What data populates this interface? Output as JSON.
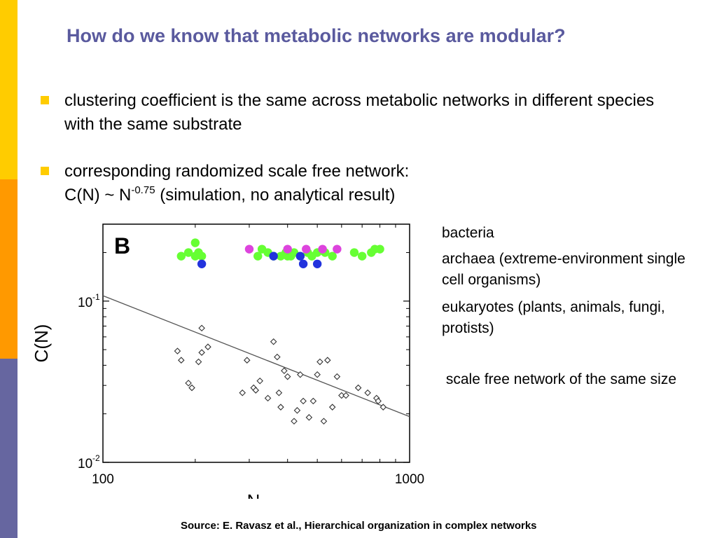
{
  "slide": {
    "title": "How do we know that metabolic networks are modular?",
    "bullets": [
      {
        "text": "clustering coefficient is the same across metabolic networks in different species with the same substrate"
      },
      {
        "line1": "corresponding randomized scale free network:",
        "line2_prefix": "C(N) ~ N",
        "line2_exponent": "-0.75",
        "line2_suffix": " (simulation, no analytical result)"
      }
    ],
    "legend": [
      "bacteria",
      "archaea (extreme-environment single cell organisms)",
      "eukaryotes (plants, animals, fungi, protists)",
      " scale free network of the same size"
    ],
    "source": "Source: E. Ravasz et al., Hierarchical organization in complex networks"
  },
  "colors": {
    "accent_yellow": "#FFCC00",
    "accent_orange": "#FF9900",
    "accent_purple": "#6666A0",
    "title": "#5A5A9E",
    "bacteria": "#66FF33",
    "archaea": "#DD44DD",
    "eukaryotes": "#2233DD"
  },
  "chart_data": {
    "type": "scatter",
    "panel_label": "B",
    "xlabel": "N",
    "ylabel": "C(N)",
    "xscale": "log",
    "yscale": "log",
    "xlim": [
      100,
      1000
    ],
    "ylim": [
      0.01,
      0.3
    ],
    "xticks": [
      {
        "value": 100,
        "label": "100"
      },
      {
        "value": 1000,
        "label": "1000"
      }
    ],
    "yticks": [
      {
        "value": 0.01,
        "base": "10",
        "exp": "-2"
      },
      {
        "value": 0.1,
        "base": "10",
        "exp": "-1"
      }
    ],
    "series": [
      {
        "color": "#66FF33",
        "marker": "filled-circle",
        "points": [
          [
            180,
            0.19
          ],
          [
            190,
            0.2
          ],
          [
            200,
            0.23
          ],
          [
            200,
            0.19
          ],
          [
            205,
            0.2
          ],
          [
            210,
            0.19
          ],
          [
            320,
            0.19
          ],
          [
            330,
            0.21
          ],
          [
            345,
            0.2
          ],
          [
            360,
            0.19
          ],
          [
            380,
            0.19
          ],
          [
            395,
            0.2
          ],
          [
            400,
            0.19
          ],
          [
            410,
            0.19
          ],
          [
            420,
            0.2
          ],
          [
            440,
            0.19
          ],
          [
            465,
            0.2
          ],
          [
            480,
            0.19
          ],
          [
            500,
            0.2
          ],
          [
            530,
            0.2
          ],
          [
            560,
            0.19
          ],
          [
            660,
            0.2
          ],
          [
            700,
            0.19
          ],
          [
            750,
            0.2
          ],
          [
            770,
            0.21
          ],
          [
            800,
            0.21
          ]
        ]
      },
      {
        "color": "#DD44DD",
        "marker": "filled-circle",
        "points": [
          [
            300,
            0.21
          ],
          [
            400,
            0.21
          ],
          [
            460,
            0.21
          ],
          [
            520,
            0.21
          ],
          [
            580,
            0.21
          ]
        ]
      },
      {
        "color": "#2233DD",
        "marker": "filled-circle",
        "points": [
          [
            210,
            0.17
          ],
          [
            360,
            0.19
          ],
          [
            440,
            0.19
          ],
          [
            450,
            0.17
          ],
          [
            500,
            0.17
          ]
        ]
      },
      {
        "color": "#000000",
        "marker": "open-diamond",
        "points": [
          [
            175,
            0.049
          ],
          [
            180,
            0.043
          ],
          [
            190,
            0.031
          ],
          [
            195,
            0.029
          ],
          [
            205,
            0.042
          ],
          [
            210,
            0.048
          ],
          [
            210,
            0.068
          ],
          [
            220,
            0.052
          ],
          [
            285,
            0.027
          ],
          [
            295,
            0.043
          ],
          [
            310,
            0.029
          ],
          [
            315,
            0.028
          ],
          [
            325,
            0.032
          ],
          [
            345,
            0.025
          ],
          [
            360,
            0.056
          ],
          [
            370,
            0.045
          ],
          [
            375,
            0.027
          ],
          [
            380,
            0.022
          ],
          [
            390,
            0.037
          ],
          [
            400,
            0.034
          ],
          [
            420,
            0.018
          ],
          [
            430,
            0.021
          ],
          [
            440,
            0.035
          ],
          [
            450,
            0.024
          ],
          [
            470,
            0.019
          ],
          [
            485,
            0.024
          ],
          [
            500,
            0.035
          ],
          [
            510,
            0.042
          ],
          [
            525,
            0.018
          ],
          [
            540,
            0.043
          ],
          [
            560,
            0.022
          ],
          [
            580,
            0.034
          ],
          [
            600,
            0.026
          ],
          [
            620,
            0.026
          ],
          [
            680,
            0.029
          ],
          [
            730,
            0.027
          ],
          [
            780,
            0.025
          ],
          [
            790,
            0.024
          ],
          [
            820,
            0.022
          ]
        ]
      }
    ],
    "fit_line": {
      "from": [
        100,
        0.108
      ],
      "to": [
        1000,
        0.0192
      ],
      "label": "C(N) ~ N^-0.75"
    }
  }
}
